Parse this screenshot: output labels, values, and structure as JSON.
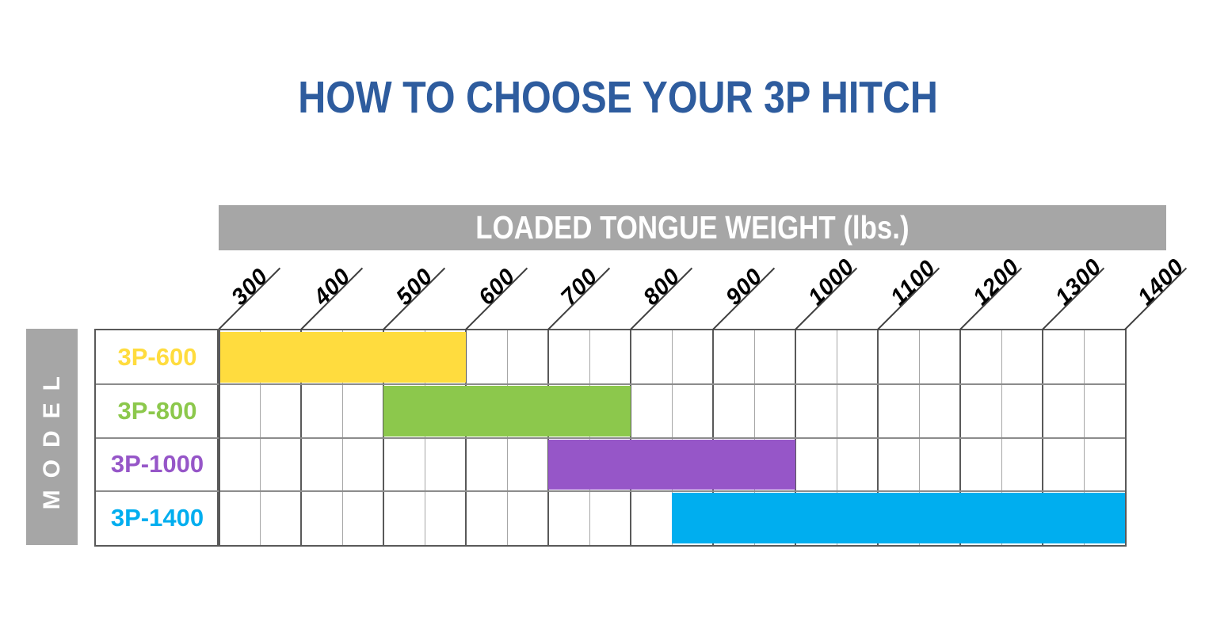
{
  "palette": {
    "background": "#FFFFFF",
    "title_text": "#2E5C9E",
    "axis_band_bg": "#A6A6A6",
    "axis_band_text": "#FFFFFF",
    "grid_minor": "#A6A6A6",
    "grid_major": "#595959",
    "row_line": "#8C8C8C",
    "tick_line": "#3F3F3F",
    "tick_text": "#000000"
  },
  "chart_data": {
    "type": "bar",
    "subtype": "horizontal-range-gantt",
    "title": "HOW TO CHOOSE YOUR 3P HITCH",
    "xlabel": "LOADED TONGUE WEIGHT (lbs.)",
    "ylabel": "MODEL",
    "categories": [
      "3P-600",
      "3P-800",
      "3P-1000",
      "3P-1400"
    ],
    "series": [
      {
        "name": "3P-600",
        "range_lbs": [
          300,
          600
        ],
        "color": "#FFDC3E"
      },
      {
        "name": "3P-800",
        "range_lbs": [
          500,
          800
        ],
        "color": "#8CC84C"
      },
      {
        "name": "3P-1000",
        "range_lbs": [
          700,
          1000
        ],
        "color": "#9656C8"
      },
      {
        "name": "3P-1400",
        "range_lbs": [
          850,
          1400
        ],
        "color": "#00AEEF"
      }
    ],
    "x_ticks": [
      300,
      400,
      500,
      600,
      700,
      800,
      900,
      1000,
      1100,
      1200,
      1300,
      1400
    ],
    "xlim": [
      300,
      1400
    ],
    "minor_step_lbs": 50,
    "major_step_lbs": 100,
    "grid": true,
    "legend": false
  }
}
